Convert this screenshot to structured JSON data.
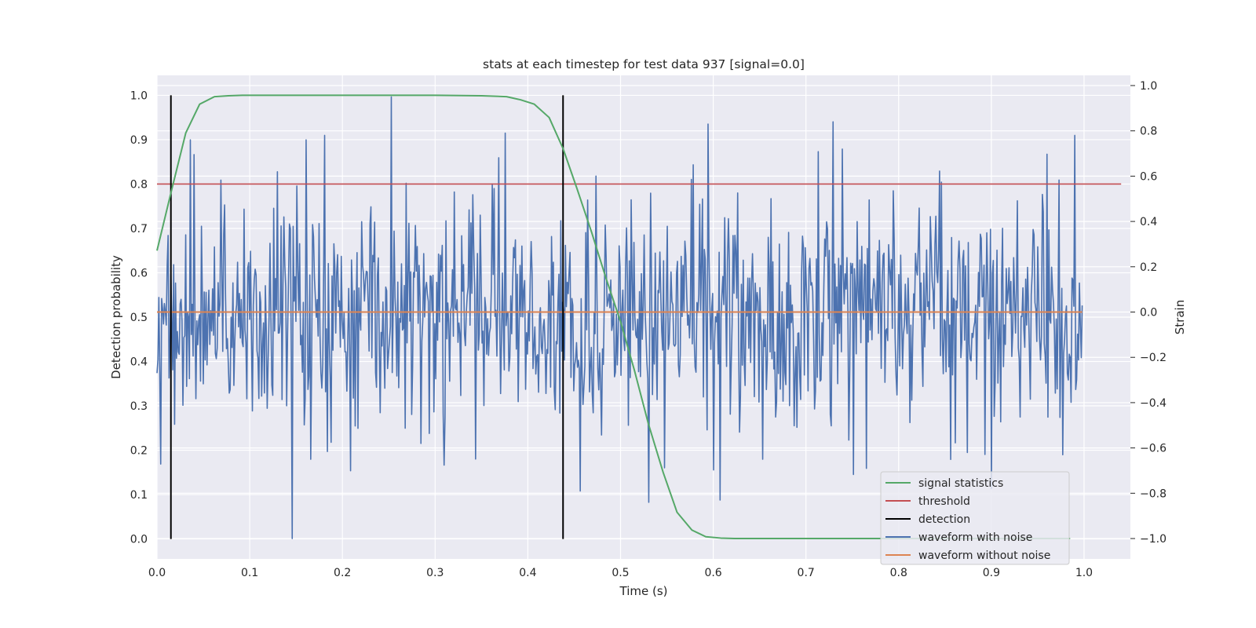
{
  "chart_data": {
    "type": "line",
    "title": "stats at each timestep for test data 937 [signal=0.0]",
    "xlabel": "Time (s)",
    "ylabel_left": "Detection probability",
    "ylabel_right": "Strain",
    "xlim": [
      0.0,
      1.05
    ],
    "ylim_left": [
      -0.045,
      1.045
    ],
    "ylim_right": [
      -1.09,
      1.045
    ],
    "x_ticks": [
      "0.0",
      "0.1",
      "0.2",
      "0.3",
      "0.4",
      "0.5",
      "0.6",
      "0.7",
      "0.8",
      "0.9",
      "1.0"
    ],
    "y_ticks_left": [
      "0.0",
      "0.1",
      "0.2",
      "0.3",
      "0.4",
      "0.5",
      "0.6",
      "0.7",
      "0.8",
      "0.9",
      "1.0"
    ],
    "y_ticks_right": [
      "−1.0",
      "−0.8",
      "−0.6",
      "−0.4",
      "−0.2",
      "0.0",
      "0.2",
      "0.4",
      "0.6",
      "0.8",
      "1.0"
    ],
    "grid": true,
    "legend_position": "bottom-right",
    "colors": {
      "signal_statistics": "#55a868",
      "threshold": "#c44e52",
      "detection": "#000000",
      "waveform_with_noise": "#4c72b0",
      "waveform_without_noise": "#dd8452",
      "plot_background": "#eaeaf2",
      "grid": "#ffffff"
    },
    "series": [
      {
        "name": "signal statistics",
        "axis": "left",
        "x": [
          0.0,
          0.015,
          0.031,
          0.046,
          0.062,
          0.077,
          0.092,
          0.108,
          0.2,
          0.3,
          0.35,
          0.377,
          0.392,
          0.407,
          0.423,
          0.438,
          0.453,
          0.469,
          0.484,
          0.5,
          0.515,
          0.53,
          0.546,
          0.561,
          0.577,
          0.592,
          0.608,
          0.623,
          0.7,
          0.8,
          0.9,
          0.985
        ],
        "y": [
          0.65,
          0.78,
          0.915,
          0.98,
          0.997,
          0.999,
          1.0,
          1.0,
          1.0,
          1.0,
          0.999,
          0.997,
          0.99,
          0.98,
          0.95,
          0.88,
          0.79,
          0.69,
          0.59,
          0.49,
          0.38,
          0.26,
          0.15,
          0.06,
          0.02,
          0.005,
          0.002,
          0.001,
          0.001,
          0.001,
          0.001,
          0.001
        ]
      },
      {
        "name": "threshold",
        "axis": "left",
        "x": [
          0.0,
          1.04
        ],
        "y": [
          0.8,
          0.8
        ]
      },
      {
        "name": "detection",
        "axis": "left",
        "type": "vlines",
        "x": [
          0.015,
          0.438
        ],
        "ymin": 0.0,
        "ymax": 1.0
      },
      {
        "name": "waveform with noise",
        "axis": "right",
        "generated": "noise",
        "x_range": [
          0.0,
          0.998
        ],
        "samples": 1000,
        "amplitude": 0.24,
        "peaks": [
          {
            "x": 0.146,
            "y": -1.0
          },
          {
            "x": 0.253,
            "y": 0.95
          },
          {
            "x": 0.036,
            "y": 0.76
          },
          {
            "x": 0.161,
            "y": 0.76
          },
          {
            "x": 0.181,
            "y": 0.78
          },
          {
            "x": 0.376,
            "y": 0.79
          },
          {
            "x": 0.594,
            "y": 0.83
          },
          {
            "x": 0.729,
            "y": 0.84
          },
          {
            "x": 0.99,
            "y": 0.78
          },
          {
            "x": 0.9,
            "y": -0.78
          },
          {
            "x": 0.607,
            "y": -0.83
          },
          {
            "x": 0.457,
            "y": -0.79
          },
          {
            "x": 0.53,
            "y": -0.84
          },
          {
            "x": 0.166,
            "y": -0.65
          },
          {
            "x": 0.285,
            "y": -0.58
          },
          {
            "x": 0.765,
            "y": -0.69
          },
          {
            "x": 0.874,
            "y": -0.62
          },
          {
            "x": 0.977,
            "y": -0.63
          }
        ]
      },
      {
        "name": "waveform without noise",
        "axis": "right",
        "x": [
          0.0,
          0.998
        ],
        "y": [
          0.0,
          0.0
        ]
      }
    ],
    "legend": [
      "signal statistics",
      "threshold",
      "detection",
      "waveform with noise",
      "waveform without noise"
    ]
  }
}
